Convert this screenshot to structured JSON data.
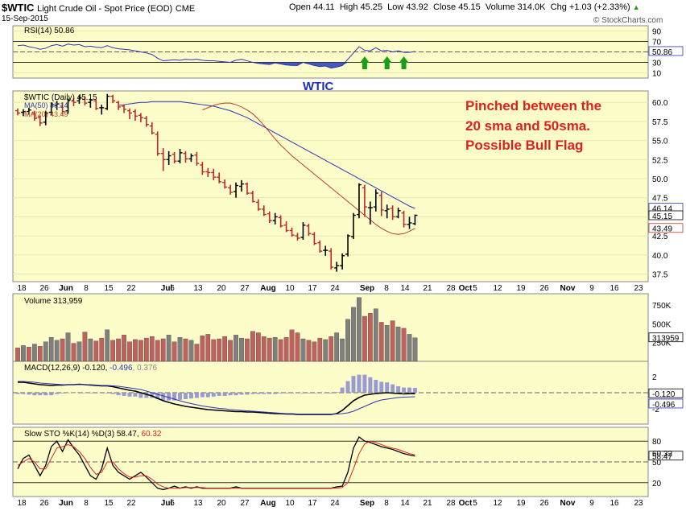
{
  "header": {
    "symbol": "$WTIC",
    "description": "Light Crude Oil - Spot Price (EOD)",
    "exchange": "CME",
    "date": "15-Sep-2015",
    "open": "Open 44.11",
    "high": "High 45.25",
    "low": "Low 43.92",
    "close": "Close 45.15",
    "volume": "Volume 314.0K",
    "change": "Chg +1.03 (+2.33%)",
    "change_arrow": "▲",
    "brand": "© StockCharts.com"
  },
  "rsi": {
    "legend": "RSI(14) 50.86",
    "ticks": [
      "90",
      "70",
      "50",
      "30",
      "10"
    ],
    "value_label": "50.86",
    "annotation": "WTIC"
  },
  "price": {
    "legend": "$WTIC (Daily) 45.15",
    "ma50_legend": "MA(50) 46.14",
    "ma20_legend": "MA(20) 43.49",
    "ticks": [
      "60.0",
      "57.5",
      "55.0",
      "52.5",
      "50.0",
      "47.5",
      "45.0",
      "42.5",
      "40.0",
      "37.5"
    ],
    "label_ma50": "46.14",
    "label_close": "45.15",
    "label_ma20": "43.49",
    "annotation_lines": [
      "Pinched between the",
      "20 sma and 50sma.",
      "Possible Bull Flag"
    ]
  },
  "volume": {
    "legend": "Volume 313,959",
    "ticks": [
      "750K",
      "500K",
      "250K"
    ],
    "value_label": "313959"
  },
  "macd": {
    "legend_a": "MACD(12,26,9) -0.120, ",
    "legend_b": "-0.496",
    "legend_c": ", 0.376",
    "ticks": [
      "2",
      "0",
      "-2"
    ],
    "label_a": "-0.120",
    "label_b": "-0.496"
  },
  "sto": {
    "legend_a": "Slow STO %K(14) %D(3) 58.47, ",
    "legend_b": "60.32",
    "ticks": [
      "80",
      "50",
      "20"
    ],
    "label_a": "58.47",
    "label_b": "60.32"
  },
  "x_axis": {
    "labels": [
      {
        "t": "18",
        "b": false
      },
      {
        "t": "26",
        "b": false
      },
      {
        "t": "Jun",
        "b": true
      },
      {
        "t": "8",
        "b": false
      },
      {
        "t": "15",
        "b": false
      },
      {
        "t": "22",
        "b": false
      },
      {
        "t": "Jul",
        "b": true
      },
      {
        "t": "6",
        "b": false
      },
      {
        "t": "13",
        "b": false
      },
      {
        "t": "20",
        "b": false
      },
      {
        "t": "27",
        "b": false
      },
      {
        "t": "Aug",
        "b": true
      },
      {
        "t": "10",
        "b": false
      },
      {
        "t": "17",
        "b": false
      },
      {
        "t": "24",
        "b": false
      },
      {
        "t": "Sep",
        "b": true
      },
      {
        "t": "8",
        "b": false
      },
      {
        "t": "14",
        "b": false
      },
      {
        "t": "21",
        "b": false
      },
      {
        "t": "28",
        "b": false
      },
      {
        "t": "Oct",
        "b": true
      },
      {
        "t": "5",
        "b": false
      },
      {
        "t": "12",
        "b": false
      },
      {
        "t": "19",
        "b": false
      },
      {
        "t": "26",
        "b": false
      },
      {
        "t": "Nov",
        "b": true
      },
      {
        "t": "9",
        "b": false
      },
      {
        "t": "16",
        "b": false
      },
      {
        "t": "23",
        "b": false
      }
    ]
  },
  "colors": {
    "panel_bg": "#fdfdc9",
    "ma50": "#2b35b8",
    "ma20": "#c0392b",
    "up_bar": "#000000",
    "down_bar": "#c0272d",
    "vol_up": "#7f7f7f",
    "vol_down": "#c06060",
    "annotation_red": "#e02020",
    "annotation_blue": "#1b2fb8",
    "arrow_green": "#1a9e1a"
  },
  "chart_data": {
    "type": "ohlc",
    "title": "$WTIC Light Crude Oil - Spot Price (EOD) CME",
    "ylim": [
      37,
      62
    ],
    "ohlc": [
      [
        58.9,
        59.2,
        58.3,
        58.6
      ],
      [
        58.7,
        59.1,
        58.2,
        58.8
      ],
      [
        58.8,
        59.3,
        58.4,
        59.0
      ],
      [
        58.6,
        58.9,
        57.6,
        57.9
      ],
      [
        58.0,
        58.3,
        56.9,
        57.3
      ],
      [
        57.4,
        58.9,
        57.0,
        58.6
      ],
      [
        58.7,
        60.0,
        58.3,
        59.7
      ],
      [
        59.6,
        60.2,
        59.0,
        59.8
      ],
      [
        59.5,
        60.0,
        58.4,
        58.8
      ],
      [
        58.9,
        60.5,
        58.5,
        60.3
      ],
      [
        60.2,
        60.6,
        59.5,
        60.0
      ],
      [
        60.2,
        60.9,
        59.8,
        60.6
      ],
      [
        60.4,
        60.8,
        59.6,
        59.9
      ],
      [
        60.0,
        60.5,
        59.3,
        60.3
      ],
      [
        60.2,
        60.4,
        59.0,
        59.2
      ],
      [
        59.3,
        59.7,
        58.4,
        59.3
      ],
      [
        59.2,
        61.1,
        59.0,
        60.8
      ],
      [
        60.8,
        61.0,
        59.9,
        60.2
      ],
      [
        60.0,
        60.2,
        59.0,
        59.4
      ],
      [
        59.5,
        59.7,
        58.6,
        59.1
      ],
      [
        58.9,
        59.2,
        57.8,
        58.6
      ],
      [
        58.8,
        59.1,
        57.6,
        58.2
      ],
      [
        58.3,
        58.6,
        57.4,
        58.0
      ],
      [
        57.9,
        58.2,
        56.8,
        57.1
      ],
      [
        56.9,
        57.4,
        55.8,
        56.0
      ],
      [
        55.8,
        56.2,
        53.0,
        53.3
      ],
      [
        53.3,
        54.0,
        51.0,
        52.5
      ],
      [
        52.5,
        53.6,
        51.8,
        53.0
      ],
      [
        53.2,
        53.5,
        52.0,
        52.3
      ],
      [
        52.3,
        53.9,
        52.0,
        53.4
      ],
      [
        53.3,
        53.6,
        52.1,
        52.6
      ],
      [
        52.6,
        53.3,
        52.2,
        53.0
      ],
      [
        53.1,
        53.5,
        51.7,
        52.0
      ],
      [
        51.8,
        52.2,
        50.5,
        50.9
      ],
      [
        50.9,
        51.4,
        50.2,
        50.8
      ],
      [
        50.8,
        51.3,
        49.8,
        50.2
      ],
      [
        50.2,
        50.8,
        49.4,
        49.6
      ],
      [
        49.5,
        49.9,
        48.7,
        48.9
      ],
      [
        48.8,
        49.2,
        47.9,
        48.2
      ],
      [
        48.3,
        49.5,
        47.5,
        49.1
      ],
      [
        49.0,
        49.8,
        48.3,
        49.3
      ],
      [
        49.3,
        49.5,
        47.9,
        48.1
      ],
      [
        48.1,
        48.4,
        46.9,
        47.0
      ],
      [
        46.9,
        47.3,
        45.8,
        46.0
      ],
      [
        46.0,
        46.5,
        45.1,
        45.3
      ],
      [
        45.4,
        45.7,
        44.2,
        44.5
      ],
      [
        44.5,
        45.5,
        44.0,
        45.0
      ],
      [
        44.9,
        45.2,
        43.6,
        43.8
      ],
      [
        43.9,
        44.4,
        43.0,
        43.2
      ],
      [
        43.2,
        43.6,
        42.4,
        42.6
      ],
      [
        42.5,
        42.9,
        41.9,
        42.2
      ],
      [
        42.3,
        44.3,
        42.0,
        43.9
      ],
      [
        43.8,
        44.1,
        42.5,
        42.8
      ],
      [
        42.7,
        43.0,
        41.3,
        41.5
      ],
      [
        41.6,
        41.9,
        40.3,
        40.5
      ],
      [
        40.6,
        41.2,
        39.9,
        40.6
      ],
      [
        40.5,
        40.9,
        38.1,
        38.4
      ],
      [
        38.3,
        39.1,
        37.8,
        38.6
      ],
      [
        38.6,
        40.2,
        38.1,
        39.9
      ],
      [
        40.1,
        42.7,
        39.8,
        42.5
      ],
      [
        42.4,
        45.5,
        42.1,
        45.2
      ],
      [
        45.3,
        49.4,
        44.8,
        49.2
      ],
      [
        48.8,
        49.2,
        45.0,
        46.3
      ],
      [
        46.2,
        47.0,
        44.0,
        46.2
      ],
      [
        46.3,
        48.6,
        45.7,
        48.1
      ],
      [
        47.8,
        48.3,
        45.1,
        45.9
      ],
      [
        45.8,
        46.6,
        44.8,
        46.0
      ],
      [
        46.1,
        46.5,
        44.6,
        45.0
      ],
      [
        45.0,
        46.2,
        44.8,
        45.8
      ],
      [
        45.5,
        45.8,
        43.6,
        44.0
      ],
      [
        44.0,
        45.0,
        43.4,
        44.2
      ],
      [
        44.1,
        45.3,
        43.9,
        45.2
      ]
    ],
    "ma50": [
      59.6,
      59.7,
      59.8,
      59.9,
      60.0,
      60.0,
      60.1,
      60.1,
      60.1,
      60.1,
      60.1,
      60.1,
      60.0,
      59.9,
      59.8,
      59.7,
      59.6,
      59.5,
      59.3,
      59.1,
      58.9,
      58.6,
      58.3,
      58.0,
      57.6,
      57.2,
      56.8,
      56.4,
      56.0,
      55.6,
      55.2,
      54.8,
      54.4,
      54.0,
      53.6,
      53.2,
      52.8,
      52.4,
      52.0,
      51.6,
      51.2,
      50.8,
      50.4,
      50.0,
      49.6,
      49.2,
      48.8,
      48.4,
      48.0,
      47.6,
      47.2,
      46.8,
      46.4,
      46.1
    ],
    "ma20": [
      59.0,
      59.3,
      59.6,
      59.8,
      59.9,
      59.9,
      59.7,
      59.4,
      59.0,
      58.5,
      57.8,
      57.0,
      56.1,
      55.2,
      54.4,
      53.7,
      53.0,
      52.4,
      51.8,
      51.2,
      50.6,
      50.0,
      49.4,
      48.8,
      48.2,
      47.6,
      47.0,
      46.4,
      45.8,
      45.2,
      44.6,
      44.0,
      43.5,
      43.1,
      42.8,
      42.7,
      42.8,
      43.1,
      43.49
    ],
    "rsi": [
      62,
      63,
      60,
      58,
      55,
      57,
      62,
      64,
      61,
      65,
      63,
      64,
      60,
      61,
      59,
      58,
      62,
      58,
      56,
      55,
      54,
      52,
      50,
      48,
      45,
      38,
      33,
      34,
      35,
      34,
      36,
      35,
      36,
      34,
      33,
      33,
      32,
      31,
      30,
      34,
      36,
      33,
      30,
      28,
      27,
      26,
      29,
      27,
      25,
      24,
      24,
      30,
      27,
      24,
      22,
      23,
      19,
      21,
      24,
      36,
      48,
      60,
      53,
      52,
      58,
      52,
      53,
      50,
      52,
      49,
      49,
      50.86
    ],
    "volume": [
      180,
      210,
      190,
      230,
      200,
      260,
      320,
      280,
      300,
      380,
      240,
      260,
      390,
      300,
      270,
      310,
      420,
      280,
      300,
      350,
      260,
      290,
      280,
      310,
      330,
      280,
      300,
      350,
      260,
      320,
      300,
      280,
      230,
      340,
      360,
      290,
      300,
      330,
      280,
      350,
      310,
      300,
      400,
      380,
      330,
      310,
      320,
      290,
      320,
      420,
      380,
      300,
      280,
      260,
      310,
      290,
      330,
      380,
      300,
      560,
      720,
      850,
      600,
      640,
      700,
      520,
      480,
      540,
      460,
      440,
      360,
      314
    ],
    "volume_up": [
      0,
      1,
      0,
      1,
      0,
      1,
      1,
      1,
      0,
      1,
      0,
      1,
      0,
      1,
      0,
      0,
      1,
      0,
      0,
      0,
      0,
      0,
      0,
      0,
      0,
      0,
      0,
      1,
      0,
      1,
      0,
      1,
      0,
      0,
      0,
      0,
      0,
      0,
      0,
      1,
      1,
      0,
      0,
      0,
      0,
      0,
      1,
      0,
      0,
      0,
      0,
      1,
      0,
      0,
      0,
      1,
      0,
      1,
      1,
      1,
      1,
      1,
      0,
      0,
      1,
      0,
      1,
      0,
      1,
      0,
      1,
      1
    ],
    "macd": [
      1.3,
      1.3,
      1.2,
      1.1,
      1.0,
      0.95,
      0.9,
      0.95,
      0.95,
      1.0,
      1.0,
      1.05,
      1.0,
      0.95,
      0.9,
      0.85,
      0.85,
      0.75,
      0.6,
      0.45,
      0.3,
      0.2,
      0.0,
      -0.2,
      -0.4,
      -0.7,
      -1.0,
      -1.2,
      -1.4,
      -1.55,
      -1.7,
      -1.8,
      -1.9,
      -2.0,
      -2.1,
      -2.15,
      -2.2,
      -2.25,
      -2.3,
      -2.35,
      -2.35,
      -2.4,
      -2.4,
      -2.45,
      -2.5,
      -2.55,
      -2.6,
      -2.6,
      -2.65,
      -2.65,
      -2.7,
      -2.7,
      -2.7,
      -2.7,
      -2.7,
      -2.7,
      -2.7,
      -2.6,
      -2.2,
      -1.6,
      -1.0,
      -0.6,
      -0.3,
      -0.2,
      -0.1,
      -0.05,
      0.0,
      -0.05,
      -0.1,
      -0.15,
      -0.12,
      -0.12
    ],
    "macd_signal": [
      1.4,
      1.4,
      1.35,
      1.3,
      1.2,
      1.15,
      1.1,
      1.05,
      1.0,
      1.0,
      1.0,
      1.0,
      1.0,
      1.0,
      0.95,
      0.9,
      0.9,
      0.85,
      0.8,
      0.7,
      0.6,
      0.5,
      0.4,
      0.2,
      0.0,
      -0.2,
      -0.4,
      -0.6,
      -0.8,
      -1.0,
      -1.2,
      -1.35,
      -1.5,
      -1.65,
      -1.75,
      -1.85,
      -1.95,
      -2.0,
      -2.1,
      -2.15,
      -2.2,
      -2.25,
      -2.3,
      -2.35,
      -2.4,
      -2.45,
      -2.5,
      -2.55,
      -2.6,
      -2.6,
      -2.65,
      -2.65,
      -2.65,
      -2.65,
      -2.65,
      -2.65,
      -2.65,
      -2.65,
      -2.6,
      -2.5,
      -2.3,
      -2.0,
      -1.7,
      -1.4,
      -1.1,
      -0.9,
      -0.8,
      -0.7,
      -0.6,
      -0.55,
      -0.52,
      -0.496
    ],
    "sto_k": [
      40,
      55,
      60,
      45,
      30,
      45,
      72,
      80,
      65,
      82,
      70,
      60,
      45,
      30,
      25,
      40,
      70,
      45,
      35,
      30,
      25,
      30,
      35,
      28,
      20,
      12,
      10,
      12,
      15,
      12,
      14,
      12,
      14,
      12,
      12,
      12,
      12,
      12,
      12,
      14,
      12,
      12,
      12,
      12,
      12,
      12,
      12,
      12,
      12,
      12,
      12,
      12,
      12,
      12,
      12,
      12,
      12,
      14,
      15,
      35,
      70,
      86,
      80,
      78,
      75,
      72,
      70,
      68,
      65,
      62,
      60,
      58.47
    ],
    "sto_d": [
      45,
      50,
      55,
      50,
      40,
      40,
      55,
      70,
      72,
      75,
      72,
      65,
      55,
      42,
      32,
      35,
      50,
      50,
      40,
      33,
      28,
      28,
      30,
      30,
      25,
      18,
      14,
      12,
      12,
      12,
      13,
      13,
      13,
      13,
      12,
      12,
      12,
      12,
      12,
      12,
      12,
      12,
      12,
      12,
      12,
      12,
      12,
      12,
      12,
      12,
      12,
      12,
      12,
      12,
      12,
      12,
      12,
      12,
      13,
      20,
      40,
      62,
      76,
      80,
      78,
      75,
      72,
      70,
      68,
      65,
      62,
      60.32
    ]
  }
}
